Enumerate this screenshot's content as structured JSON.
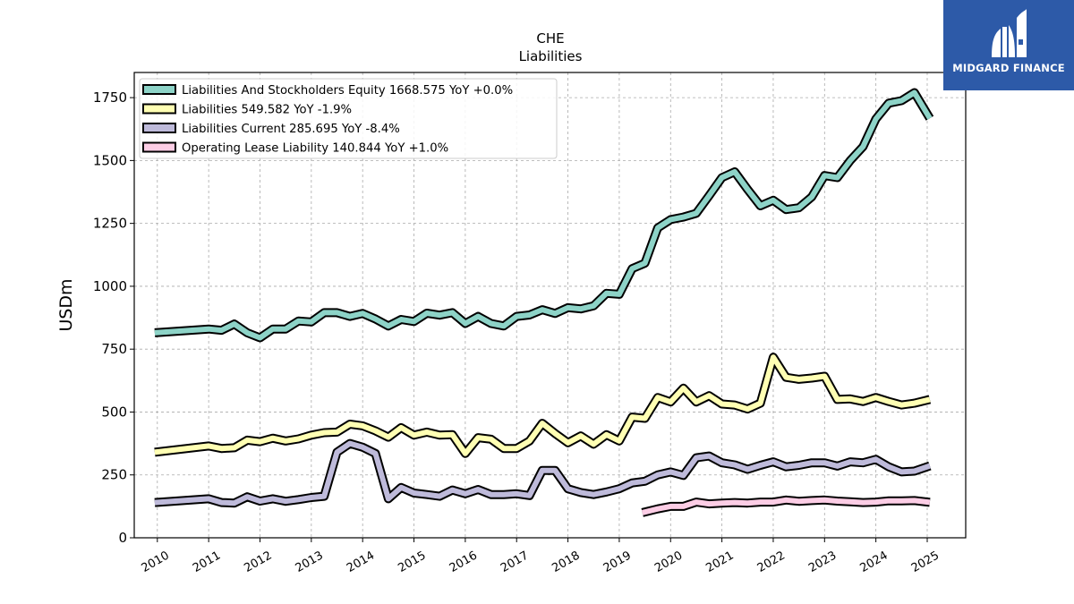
{
  "logo": {
    "text": "MIDGARD FINANCE"
  },
  "chart_data": {
    "type": "line",
    "title": "CHE",
    "subtitle": "Liabilities",
    "ylabel": "USDm",
    "xlabel": "",
    "xlim": [
      2009.55,
      2025.75
    ],
    "ylim": [
      0,
      1850
    ],
    "x_ticks": [
      2010,
      2011,
      2012,
      2013,
      2014,
      2015,
      2016,
      2017,
      2018,
      2019,
      2020,
      2021,
      2022,
      2023,
      2024,
      2025
    ],
    "y_ticks": [
      0,
      250,
      500,
      750,
      1000,
      1250,
      1500,
      1750
    ],
    "grid": true,
    "legend_position": "top-left",
    "series": [
      {
        "name": "Liabilities And Stockholders Equity  1668.575 YoY +0.0%",
        "color": "#8dd3c7",
        "points": [
          [
            2009.95,
            815
          ],
          [
            2011.0,
            830
          ],
          [
            2011.25,
            825
          ],
          [
            2011.5,
            850
          ],
          [
            2011.75,
            815
          ],
          [
            2012.0,
            795
          ],
          [
            2012.25,
            830
          ],
          [
            2012.5,
            830
          ],
          [
            2012.75,
            862
          ],
          [
            2013.0,
            858
          ],
          [
            2013.25,
            895
          ],
          [
            2013.5,
            895
          ],
          [
            2013.75,
            880
          ],
          [
            2014.0,
            892
          ],
          [
            2014.25,
            870
          ],
          [
            2014.5,
            842
          ],
          [
            2014.75,
            868
          ],
          [
            2015.0,
            860
          ],
          [
            2015.25,
            893
          ],
          [
            2015.5,
            885
          ],
          [
            2015.75,
            895
          ],
          [
            2016.0,
            852
          ],
          [
            2016.25,
            880
          ],
          [
            2016.5,
            852
          ],
          [
            2016.75,
            842
          ],
          [
            2017.0,
            880
          ],
          [
            2017.25,
            886
          ],
          [
            2017.5,
            907
          ],
          [
            2017.75,
            892
          ],
          [
            2018.0,
            915
          ],
          [
            2018.25,
            910
          ],
          [
            2018.5,
            922
          ],
          [
            2018.75,
            972
          ],
          [
            2019.0,
            968
          ],
          [
            2019.25,
            1070
          ],
          [
            2019.5,
            1092
          ],
          [
            2019.75,
            1232
          ],
          [
            2020.0,
            1265
          ],
          [
            2020.25,
            1275
          ],
          [
            2020.5,
            1290
          ],
          [
            2020.75,
            1360
          ],
          [
            2021.0,
            1432
          ],
          [
            2021.25,
            1455
          ],
          [
            2021.5,
            1385
          ],
          [
            2021.75,
            1320
          ],
          [
            2022.0,
            1342
          ],
          [
            2022.25,
            1305
          ],
          [
            2022.5,
            1312
          ],
          [
            2022.75,
            1355
          ],
          [
            2023.0,
            1440
          ],
          [
            2023.25,
            1432
          ],
          [
            2023.5,
            1500
          ],
          [
            2023.75,
            1555
          ],
          [
            2024.0,
            1665
          ],
          [
            2024.25,
            1728
          ],
          [
            2024.5,
            1738
          ],
          [
            2024.75,
            1770
          ],
          [
            2025.05,
            1668
          ]
        ]
      },
      {
        "name": "Liabilities  549.582 YoY -1.9%",
        "color": "#ffffb3",
        "points": [
          [
            2009.95,
            340
          ],
          [
            2011.0,
            365
          ],
          [
            2011.25,
            355
          ],
          [
            2011.5,
            358
          ],
          [
            2011.75,
            388
          ],
          [
            2012.0,
            382
          ],
          [
            2012.25,
            396
          ],
          [
            2012.5,
            385
          ],
          [
            2012.75,
            393
          ],
          [
            2013.0,
            408
          ],
          [
            2013.25,
            418
          ],
          [
            2013.5,
            420
          ],
          [
            2013.75,
            452
          ],
          [
            2014.0,
            445
          ],
          [
            2014.25,
            425
          ],
          [
            2014.5,
            400
          ],
          [
            2014.75,
            438
          ],
          [
            2015.0,
            408
          ],
          [
            2015.25,
            420
          ],
          [
            2015.5,
            408
          ],
          [
            2015.75,
            410
          ],
          [
            2016.0,
            335
          ],
          [
            2016.25,
            398
          ],
          [
            2016.5,
            392
          ],
          [
            2016.75,
            355
          ],
          [
            2017.0,
            355
          ],
          [
            2017.25,
            385
          ],
          [
            2017.5,
            455
          ],
          [
            2017.75,
            415
          ],
          [
            2018.0,
            378
          ],
          [
            2018.25,
            405
          ],
          [
            2018.5,
            372
          ],
          [
            2018.75,
            410
          ],
          [
            2019.0,
            385
          ],
          [
            2019.25,
            480
          ],
          [
            2019.5,
            475
          ],
          [
            2019.75,
            558
          ],
          [
            2020.0,
            540
          ],
          [
            2020.25,
            595
          ],
          [
            2020.5,
            540
          ],
          [
            2020.75,
            565
          ],
          [
            2021.0,
            532
          ],
          [
            2021.25,
            528
          ],
          [
            2021.5,
            512
          ],
          [
            2021.75,
            535
          ],
          [
            2022.0,
            718
          ],
          [
            2022.25,
            638
          ],
          [
            2022.5,
            630
          ],
          [
            2022.75,
            635
          ],
          [
            2023.0,
            642
          ],
          [
            2023.25,
            550
          ],
          [
            2023.5,
            552
          ],
          [
            2023.75,
            542
          ],
          [
            2024.0,
            558
          ],
          [
            2024.25,
            542
          ],
          [
            2024.5,
            528
          ],
          [
            2024.75,
            535
          ],
          [
            2025.05,
            550
          ]
        ]
      },
      {
        "name": "Liabilities Current  285.695 YoY -8.4%",
        "color": "#bebada",
        "points": [
          [
            2009.95,
            140
          ],
          [
            2011.0,
            155
          ],
          [
            2011.25,
            140
          ],
          [
            2011.5,
            138
          ],
          [
            2011.75,
            163
          ],
          [
            2012.0,
            146
          ],
          [
            2012.25,
            155
          ],
          [
            2012.5,
            145
          ],
          [
            2012.75,
            152
          ],
          [
            2013.0,
            160
          ],
          [
            2013.25,
            165
          ],
          [
            2013.5,
            340
          ],
          [
            2013.75,
            375
          ],
          [
            2014.0,
            360
          ],
          [
            2014.25,
            335
          ],
          [
            2014.5,
            155
          ],
          [
            2014.75,
            200
          ],
          [
            2015.0,
            178
          ],
          [
            2015.25,
            172
          ],
          [
            2015.5,
            165
          ],
          [
            2015.75,
            190
          ],
          [
            2016.0,
            175
          ],
          [
            2016.25,
            192
          ],
          [
            2016.5,
            172
          ],
          [
            2016.75,
            172
          ],
          [
            2017.0,
            175
          ],
          [
            2017.25,
            168
          ],
          [
            2017.5,
            268
          ],
          [
            2017.75,
            268
          ],
          [
            2018.0,
            195
          ],
          [
            2018.25,
            180
          ],
          [
            2018.5,
            172
          ],
          [
            2018.75,
            182
          ],
          [
            2019.0,
            195
          ],
          [
            2019.25,
            218
          ],
          [
            2019.5,
            225
          ],
          [
            2019.75,
            250
          ],
          [
            2020.0,
            262
          ],
          [
            2020.25,
            248
          ],
          [
            2020.5,
            318
          ],
          [
            2020.75,
            325
          ],
          [
            2021.0,
            298
          ],
          [
            2021.25,
            290
          ],
          [
            2021.5,
            272
          ],
          [
            2021.75,
            288
          ],
          [
            2022.0,
            302
          ],
          [
            2022.25,
            282
          ],
          [
            2022.5,
            288
          ],
          [
            2022.75,
            298
          ],
          [
            2023.0,
            298
          ],
          [
            2023.25,
            285
          ],
          [
            2023.5,
            302
          ],
          [
            2023.75,
            298
          ],
          [
            2024.0,
            312
          ],
          [
            2024.25,
            282
          ],
          [
            2024.5,
            262
          ],
          [
            2024.75,
            265
          ],
          [
            2025.05,
            286
          ]
        ]
      },
      {
        "name": "Operating Lease Liability  140.844 YoY +1.0%",
        "color": "#fccde5",
        "points": [
          [
            2019.45,
            100
          ],
          [
            2019.75,
            115
          ],
          [
            2020.0,
            125
          ],
          [
            2020.25,
            125
          ],
          [
            2020.5,
            142
          ],
          [
            2020.75,
            135
          ],
          [
            2021.0,
            138
          ],
          [
            2021.25,
            140
          ],
          [
            2021.5,
            138
          ],
          [
            2021.75,
            142
          ],
          [
            2022.0,
            142
          ],
          [
            2022.25,
            150
          ],
          [
            2022.5,
            145
          ],
          [
            2022.75,
            148
          ],
          [
            2023.0,
            150
          ],
          [
            2023.25,
            146
          ],
          [
            2023.5,
            143
          ],
          [
            2023.75,
            140
          ],
          [
            2024.0,
            142
          ],
          [
            2024.25,
            147
          ],
          [
            2024.5,
            147
          ],
          [
            2024.75,
            148
          ],
          [
            2025.05,
            141
          ]
        ]
      }
    ]
  }
}
